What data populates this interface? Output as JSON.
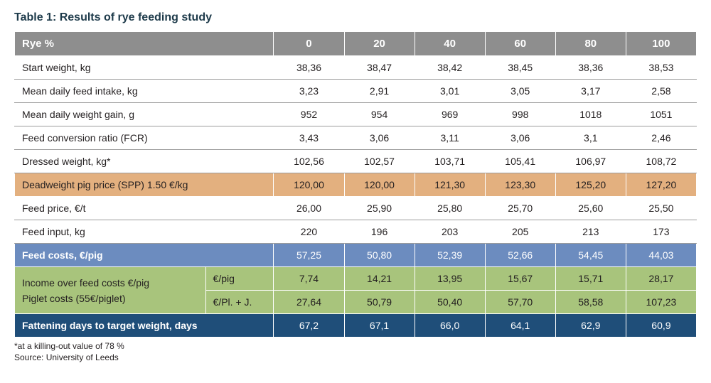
{
  "title": "Table 1: Results of rye feeding study",
  "header": {
    "rowLabel": "Rye %",
    "subLabel": "",
    "cols": [
      "0",
      "20",
      "40",
      "60",
      "80",
      "100"
    ]
  },
  "rows": [
    {
      "type": "plain",
      "rule": true,
      "label": "Start weight, kg",
      "sub": "",
      "vals": [
        "38,36",
        "38,47",
        "38,42",
        "38,45",
        "38,36",
        "38,53"
      ]
    },
    {
      "type": "plain",
      "rule": true,
      "label": "Mean daily feed intake, kg",
      "sub": "",
      "vals": [
        "3,23",
        "2,91",
        "3,01",
        "3,05",
        "3,17",
        "2,58"
      ]
    },
    {
      "type": "plain",
      "rule": true,
      "label": "Mean daily weight gain, g",
      "sub": "",
      "vals": [
        "952",
        "954",
        "969",
        "998",
        "1018",
        "1051"
      ]
    },
    {
      "type": "plain",
      "rule": true,
      "label": "Feed conversion ratio (FCR)",
      "sub": "",
      "vals": [
        "3,43",
        "3,06",
        "3,11",
        "3,06",
        "3,1",
        "2,46"
      ]
    },
    {
      "type": "plain",
      "rule": true,
      "label": "Dressed weight, kg*",
      "sub": "",
      "vals": [
        "102,56",
        "102,57",
        "103,71",
        "105,41",
        "106,97",
        "108,72"
      ]
    },
    {
      "type": "tan",
      "rule": false,
      "label": "Deadweight pig price (SPP) 1.50 €/kg",
      "sub": "",
      "vals": [
        "120,00",
        "120,00",
        "121,30",
        "123,30",
        "125,20",
        "127,20"
      ]
    },
    {
      "type": "plain",
      "rule": true,
      "label": "Feed price, €/t",
      "sub": "",
      "vals": [
        "26,00",
        "25,90",
        "25,80",
        "25,70",
        "25,60",
        "25,50"
      ]
    },
    {
      "type": "plain",
      "rule": true,
      "label": "Feed input, kg",
      "sub": "",
      "vals": [
        "220",
        "196",
        "203",
        "205",
        "213",
        "173"
      ]
    },
    {
      "type": "blue",
      "rule": false,
      "label": "Feed costs, €/pig",
      "sub": "",
      "vals": [
        "57,25",
        "50,80",
        "52,39",
        "52,66",
        "54,45",
        "44,03"
      ]
    },
    {
      "type": "green",
      "rule": false,
      "label": "Income over feed costs €/pig",
      "sub": "€/pig",
      "vals": [
        "7,74",
        "14,21",
        "13,95",
        "15,67",
        "15,71",
        "28,17"
      ],
      "hasSub": true,
      "spanStart": true,
      "spanRows": 2
    },
    {
      "type": "green",
      "rule": false,
      "label": "Piglet costs (55€/piglet)",
      "sub": "€/Pl. + J.",
      "vals": [
        "27,64",
        "50,79",
        "50,40",
        "57,70",
        "58,58",
        "107,23"
      ],
      "hasSub": true,
      "spanCont": true
    },
    {
      "type": "navy",
      "rule": false,
      "label": "Fattening days to target weight, days",
      "sub": "",
      "vals": [
        "67,2",
        "67,1",
        "66,0",
        "64,1",
        "62,9",
        "60,9"
      ]
    }
  ],
  "greenGroup": {
    "line1": "Income over feed costs €/pig",
    "line2": "Piglet costs (55€/piglet)"
  },
  "footnote": {
    "line1": "*at a killing-out value of 78 %",
    "line2": "Source: University of Leeds"
  },
  "colors": {
    "headerBg": "#8e8e8e",
    "tan": "#e3b07f",
    "blue": "#6c8cbf",
    "green": "#a8c47c",
    "navy": "#1f4e79",
    "rule": "#9c9c9c",
    "title": "#1d3a4a"
  }
}
